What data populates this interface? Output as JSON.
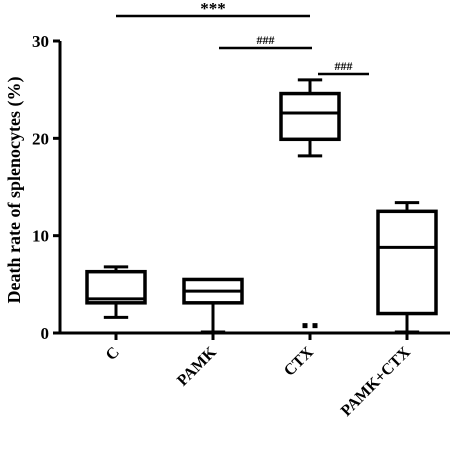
{
  "chart_data": {
    "type": "box",
    "title": "",
    "xlabel": "",
    "ylabel": "Death rate of splenocytes (%)",
    "ylim": [
      0,
      30
    ],
    "yticks": [
      0,
      10,
      20,
      30
    ],
    "categories": [
      "C",
      "PAMK",
      "CTX",
      "PAMK+CTX"
    ],
    "boxes": [
      {
        "name": "C",
        "min": 1.6,
        "q1": 3.1,
        "median": 3.5,
        "q3": 6.3,
        "max": 6.8
      },
      {
        "name": "PAMK",
        "min": 0.1,
        "q1": 3.1,
        "median": 4.3,
        "q3": 5.5,
        "max": 5.5
      },
      {
        "name": "CTX",
        "min": 18.2,
        "q1": 19.9,
        "median": 22.6,
        "q3": 24.6,
        "max": 26.0,
        "outliers": [
          0.5,
          0.5
        ]
      },
      {
        "name": "PAMK+CTX",
        "min": 0.1,
        "q1": 2.0,
        "median": 8.8,
        "q3": 12.5,
        "max": 13.4
      }
    ],
    "significance": [
      {
        "from": "C",
        "to": "CTX",
        "label": "***"
      },
      {
        "from": "PAMK",
        "to": "CTX",
        "label": "###"
      },
      {
        "from": "CTX",
        "to": "PAMK+CTX",
        "label": "###"
      }
    ],
    "grid": false,
    "legend": "none"
  }
}
